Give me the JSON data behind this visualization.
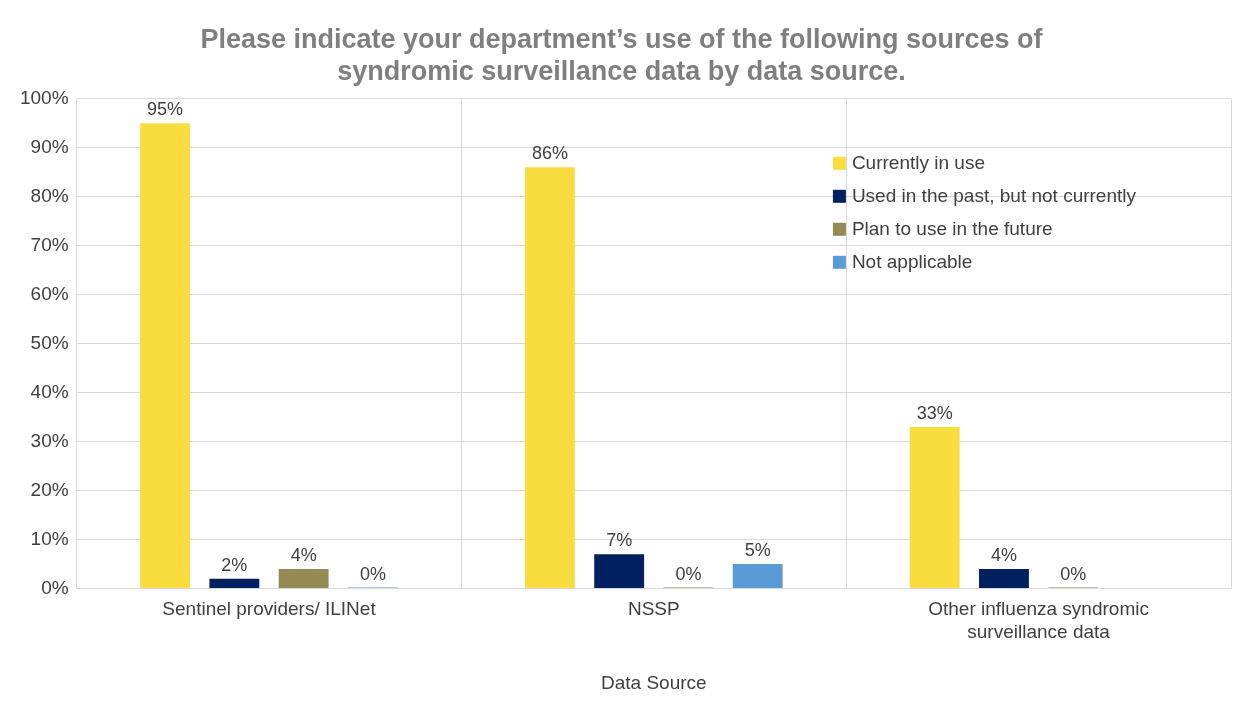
{
  "chart_data": {
    "type": "bar",
    "title": "Please indicate your department’s use of the following sources of syndromic surveillance data by data source.",
    "xlabel": "Data Source",
    "categories": [
      "Sentinel providers/ ILINet",
      "NSSP",
      "Other influenza syndromic surveillance data"
    ],
    "series": [
      {
        "name": "Currently in use",
        "color": "#f9dc3e",
        "values": [
          95,
          86,
          33
        ],
        "value_labels": [
          "95%",
          "86%",
          "33%"
        ]
      },
      {
        "name": "Used in the past, but not currently",
        "color": "#002060",
        "values": [
          2,
          7,
          4
        ],
        "value_labels": [
          "2%",
          "7%",
          "4%"
        ]
      },
      {
        "name": "Plan to use in the future",
        "color": "#948a54",
        "values": [
          4,
          0,
          0
        ],
        "value_labels": [
          "4%",
          "0%",
          "0%"
        ]
      },
      {
        "name": "Not applicable",
        "color": "#5b9bd5",
        "values": [
          0,
          5,
          null
        ],
        "value_labels": [
          "0%",
          "5%",
          null
        ]
      }
    ],
    "ylim": [
      0,
      100
    ],
    "yticks": [
      {
        "value": 0,
        "label": "0%"
      },
      {
        "value": 10,
        "label": "10%"
      },
      {
        "value": 20,
        "label": "20%"
      },
      {
        "value": 30,
        "label": "30%"
      },
      {
        "value": 40,
        "label": "40%"
      },
      {
        "value": 50,
        "label": "50%"
      },
      {
        "value": 60,
        "label": "60%"
      },
      {
        "value": 70,
        "label": "70%"
      },
      {
        "value": 80,
        "label": "80%"
      },
      {
        "value": 90,
        "label": "90%"
      },
      {
        "value": 100,
        "label": "100%"
      }
    ],
    "grid": true,
    "legend": "top right"
  }
}
